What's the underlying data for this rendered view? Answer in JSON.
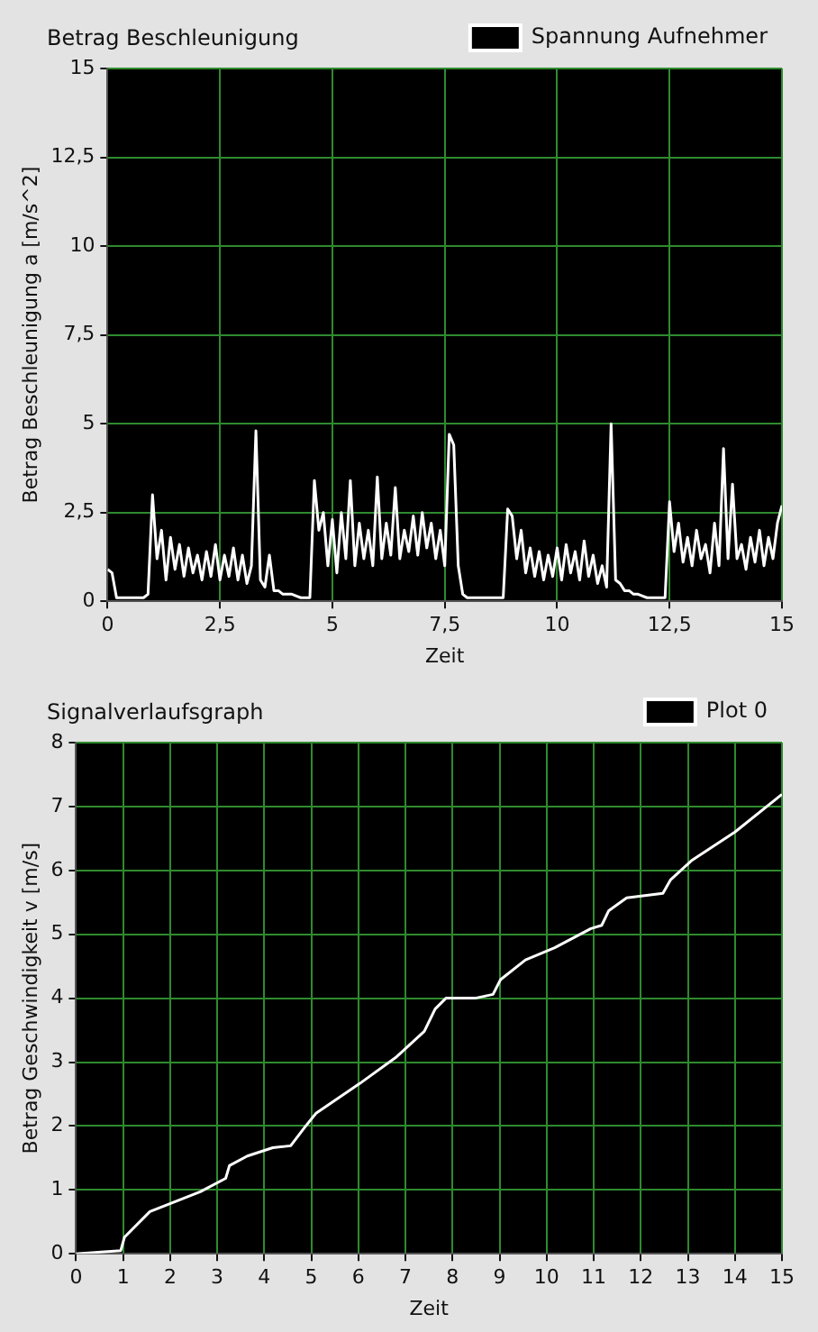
{
  "chart_data": [
    {
      "type": "line",
      "title": "Betrag Beschleunigung",
      "xlabel": "Zeit",
      "ylabel": "Betrag Beschleunigung a [m/s^2]",
      "legend": "top right",
      "grid": true,
      "marker": "none",
      "line_style": "solid",
      "xlim": [
        0,
        15
      ],
      "xticks": [
        0,
        {
          "value": 2.5,
          "label": "2,5"
        },
        5,
        {
          "value": 7.5,
          "label": "7,5"
        },
        10,
        {
          "value": 12.5,
          "label": "12,5"
        },
        15
      ],
      "ylim": [
        0,
        15
      ],
      "yticks": [
        0,
        {
          "value": 2.5,
          "label": "2,5"
        },
        5,
        {
          "value": 7.5,
          "label": "7,5"
        },
        10,
        {
          "value": 12.5,
          "label": "12,5"
        },
        15
      ],
      "series": [
        {
          "name": "Spannung Aufnehmer",
          "color": "#ffffff",
          "x": [
            0,
            0.1,
            0.2,
            0.3,
            0.4,
            0.5,
            0.6,
            0.7,
            0.8,
            0.9,
            1,
            1.1,
            1.2,
            1.3,
            1.4,
            1.5,
            1.6,
            1.7,
            1.8,
            1.9,
            2,
            2.1,
            2.2,
            2.3,
            2.4,
            2.5,
            2.6,
            2.7,
            2.8,
            2.9,
            3,
            3.1,
            3.2,
            3.3,
            3.4,
            3.5,
            3.6,
            3.7,
            3.8,
            3.9,
            4,
            4.1,
            4.2,
            4.3,
            4.4,
            4.5,
            4.6,
            4.7,
            4.8,
            4.9,
            5,
            5.1,
            5.2,
            5.3,
            5.4,
            5.5,
            5.6,
            5.7,
            5.8,
            5.9,
            6,
            6.1,
            6.2,
            6.3,
            6.4,
            6.5,
            6.6,
            6.7,
            6.8,
            6.9,
            7,
            7.1,
            7.2,
            7.3,
            7.4,
            7.5,
            7.6,
            7.7,
            7.8,
            7.9,
            8,
            8.1,
            8.2,
            8.3,
            8.4,
            8.5,
            8.6,
            8.7,
            8.8,
            8.9,
            9,
            9.1,
            9.2,
            9.3,
            9.4,
            9.5,
            9.6,
            9.7,
            9.8,
            9.9,
            10,
            10.1,
            10.2,
            10.3,
            10.4,
            10.5,
            10.6,
            10.7,
            10.8,
            10.9,
            11,
            11.1,
            11.2,
            11.3,
            11.4,
            11.5,
            11.6,
            11.7,
            11.8,
            11.9,
            12,
            12.1,
            12.2,
            12.3,
            12.4,
            12.5,
            12.6,
            12.7,
            12.8,
            12.9,
            13,
            13.1,
            13.2,
            13.3,
            13.4,
            13.5,
            13.6,
            13.7,
            13.8,
            13.9,
            14,
            14.1,
            14.2,
            14.3,
            14.4,
            14.5,
            14.6,
            14.7,
            14.8,
            14.9,
            15
          ],
          "values": [
            0.9,
            0.8,
            0.1,
            0.1,
            0.1,
            0.1,
            0.1,
            0.1,
            0.1,
            0.2,
            3.0,
            1.2,
            2.0,
            0.6,
            1.8,
            0.9,
            1.6,
            0.7,
            1.5,
            0.8,
            1.3,
            0.6,
            1.4,
            0.7,
            1.6,
            0.6,
            1.3,
            0.7,
            1.5,
            0.6,
            1.3,
            0.5,
            1.0,
            4.8,
            0.6,
            0.4,
            1.3,
            0.3,
            0.3,
            0.2,
            0.2,
            0.2,
            0.15,
            0.1,
            0.1,
            0.1,
            3.4,
            2.0,
            2.5,
            1.0,
            2.3,
            0.8,
            2.5,
            1.2,
            3.4,
            1.0,
            2.2,
            1.2,
            2.0,
            1.0,
            3.5,
            1.2,
            2.2,
            1.3,
            3.2,
            1.2,
            2.0,
            1.4,
            2.4,
            1.3,
            2.5,
            1.5,
            2.2,
            1.2,
            2.0,
            1.0,
            4.7,
            4.4,
            1.0,
            0.2,
            0.1,
            0.1,
            0.1,
            0.1,
            0.1,
            0.1,
            0.1,
            0.1,
            0.1,
            2.6,
            2.4,
            1.2,
            2.0,
            0.8,
            1.5,
            0.7,
            1.4,
            0.6,
            1.3,
            0.7,
            1.5,
            0.6,
            1.6,
            0.8,
            1.4,
            0.6,
            1.7,
            0.7,
            1.3,
            0.5,
            1.0,
            0.4,
            5.0,
            0.6,
            0.5,
            0.3,
            0.3,
            0.2,
            0.2,
            0.15,
            0.1,
            0.1,
            0.1,
            0.1,
            0.1,
            2.8,
            1.4,
            2.2,
            1.1,
            1.8,
            1.0,
            2.0,
            1.2,
            1.6,
            0.8,
            2.2,
            1.0,
            4.3,
            1.2,
            3.3,
            1.2,
            1.6,
            0.9,
            1.8,
            1.1,
            2.0,
            1.0,
            1.8,
            1.2,
            2.2,
            2.7
          ]
        }
      ]
    },
    {
      "type": "line",
      "title": "Signalverlaufsgraph",
      "xlabel": "Zeit",
      "ylabel": "Betrag Geschwindigkeit v [m/s]",
      "legend": "top right",
      "grid": true,
      "marker": "none",
      "line_style": "solid",
      "xlim": [
        0,
        15
      ],
      "xticks": [
        0,
        1,
        2,
        3,
        4,
        5,
        6,
        7,
        8,
        9,
        10,
        11,
        12,
        13,
        14,
        15
      ],
      "ylim": [
        0,
        8
      ],
      "yticks": [
        0,
        1,
        2,
        3,
        4,
        5,
        6,
        7,
        8
      ],
      "series": [
        {
          "name": "Plot 0",
          "color": "#ffffff",
          "x": [
            0,
            0.95,
            1.03,
            1.57,
            2.64,
            3.18,
            3.26,
            3.64,
            4.18,
            4.56,
            4.87,
            5.1,
            6.02,
            6.79,
            7.4,
            7.63,
            7.86,
            8.48,
            8.86,
            9.02,
            9.55,
            10.17,
            10.94,
            11.17,
            11.32,
            11.7,
            12.47,
            12.63,
            13.09,
            14.0,
            15.0
          ],
          "values": [
            0,
            0.05,
            0.26,
            0.66,
            0.97,
            1.18,
            1.38,
            1.53,
            1.66,
            1.69,
            1.99,
            2.2,
            2.66,
            3.07,
            3.48,
            3.83,
            4.0,
            4.0,
            4.06,
            4.29,
            4.6,
            4.79,
            5.09,
            5.14,
            5.37,
            5.57,
            5.64,
            5.85,
            6.16,
            6.6,
            7.19
          ]
        }
      ]
    }
  ]
}
